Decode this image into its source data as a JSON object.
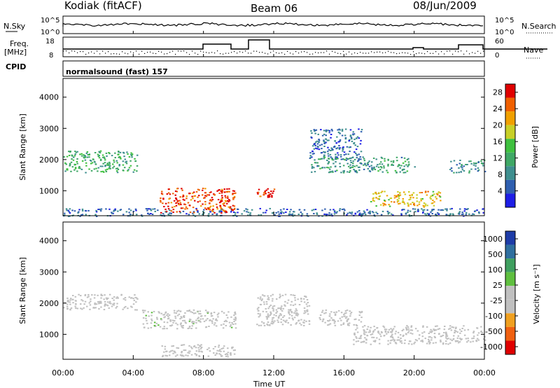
{
  "header": {
    "station": "Kodiak (fitACF)",
    "beam": "Beam 06",
    "date": "08/Jun/2009"
  },
  "top_strip": {
    "left_label": "N.Sky",
    "right_label": "N.Search",
    "left_ticks": [
      "10^5",
      "10^0"
    ],
    "right_ticks": [
      "10^5",
      "10^0"
    ]
  },
  "freq_strip": {
    "left_label_line1": "Freq.",
    "left_label_line2": "[MHz]",
    "left_ticks": [
      "18",
      "8"
    ],
    "right_label": "Nave",
    "right_ticks": [
      "60",
      "0"
    ]
  },
  "cpid": {
    "label": "CPID",
    "value": "normalsound (fast) 157"
  },
  "colors": {
    "power": [
      "#1e1ee6",
      "#2f5fb0",
      "#3f8f8f",
      "#3fa866",
      "#3fc03f",
      "#c8d028",
      "#f0a000",
      "#f06000",
      "#e00000"
    ],
    "velocity": [
      "#1e3ca8",
      "#2f6f9f",
      "#3f9f5f",
      "#5fbf3f",
      "#c0c0c0",
      "#c0c0c0",
      "#f0a020",
      "#f06010",
      "#e00000"
    ]
  },
  "chart_data": [
    {
      "type": "heatmap",
      "panel": "power",
      "ylabel": "Slant Range [km]",
      "xlabel": "Time UT",
      "x_ticks": [
        "00:00",
        "04:00",
        "08:00",
        "12:00",
        "16:00",
        "20:00",
        "00:00"
      ],
      "y_ticks": [
        "1000",
        "2000",
        "3000",
        "4000"
      ],
      "ylim": [
        200,
        4600
      ],
      "xlim_hours": [
        0,
        24
      ],
      "colorbar": {
        "label": "Power [dB]",
        "ticks": [
          "4",
          "8",
          "12",
          "16",
          "20",
          "24",
          "28"
        ],
        "range": [
          0,
          30
        ]
      },
      "features": [
        {
          "t0": 0.0,
          "t1": 24.0,
          "r0": 200,
          "r1": 450,
          "value": 6
        },
        {
          "t0": 5.5,
          "t1": 9.8,
          "r0": 300,
          "r1": 1100,
          "value": 26
        },
        {
          "t0": 0.0,
          "t1": 4.2,
          "r0": 1600,
          "r1": 2300,
          "value": 12
        },
        {
          "t0": 11.0,
          "t1": 12.0,
          "r0": 800,
          "r1": 1100,
          "value": 27
        },
        {
          "t0": 14.0,
          "t1": 17.0,
          "r0": 2000,
          "r1": 3000,
          "value": 6
        },
        {
          "t0": 17.5,
          "t1": 21.5,
          "r0": 500,
          "r1": 1000,
          "value": 20
        },
        {
          "t0": 14.0,
          "t1": 20.0,
          "r0": 1600,
          "r1": 2100,
          "value": 10
        },
        {
          "t0": 22.0,
          "t1": 24.0,
          "r0": 1600,
          "r1": 2000,
          "value": 8
        }
      ]
    },
    {
      "type": "heatmap",
      "panel": "velocity",
      "ylabel": "Slant Range [km]",
      "xlabel": "Time UT",
      "x_ticks": [
        "00:00",
        "04:00",
        "08:00",
        "12:00",
        "16:00",
        "20:00",
        "00:00"
      ],
      "y_ticks": [
        "1000",
        "2000",
        "3000",
        "4000"
      ],
      "ylim": [
        200,
        4600
      ],
      "xlim_hours": [
        0,
        24
      ],
      "colorbar": {
        "label": "Velocity [m s⁻¹]",
        "ticks": [
          "1000",
          "500",
          "100",
          "25",
          "-25",
          "-100",
          "-500",
          "-1000"
        ],
        "range": [
          -1200,
          1200
        ]
      },
      "features": [
        {
          "t0": 0.0,
          "t1": 4.2,
          "r0": 1800,
          "r1": 2300,
          "value": 0
        },
        {
          "t0": 4.5,
          "t1": 9.8,
          "r0": 1200,
          "r1": 1800,
          "value": 50
        },
        {
          "t0": 5.5,
          "t1": 9.8,
          "r0": 300,
          "r1": 700,
          "value": 0
        },
        {
          "t0": 14.5,
          "t1": 17.0,
          "r0": 1300,
          "r1": 1800,
          "value": -150
        },
        {
          "t0": 16.5,
          "t1": 24.0,
          "r0": 700,
          "r1": 1300,
          "value": 0
        },
        {
          "t0": 11.0,
          "t1": 14.0,
          "r0": 1300,
          "r1": 2300,
          "value": 0
        }
      ]
    }
  ]
}
